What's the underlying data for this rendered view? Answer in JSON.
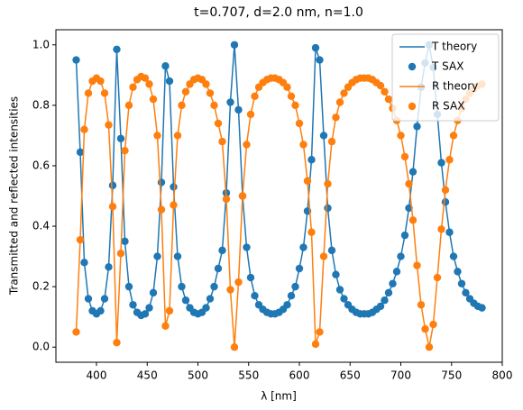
{
  "chart_data": {
    "type": "line",
    "title": "t=0.707, d=2.0 nm, n=1.0",
    "xlabel": "λ [nm]",
    "ylabel": "Transmitted and reflected intensities",
    "x": [
      380,
      384,
      388,
      392,
      396,
      400,
      404,
      408,
      412,
      416,
      420,
      424,
      428,
      432,
      436,
      440,
      444,
      448,
      452,
      456,
      460,
      464,
      468,
      472,
      476,
      480,
      484,
      488,
      492,
      496,
      500,
      504,
      508,
      512,
      516,
      520,
      524,
      528,
      532,
      536,
      540,
      544,
      548,
      552,
      556,
      560,
      564,
      568,
      572,
      576,
      580,
      584,
      588,
      592,
      596,
      600,
      604,
      608,
      612,
      616,
      620,
      624,
      628,
      632,
      636,
      640,
      644,
      648,
      652,
      656,
      660,
      664,
      668,
      672,
      676,
      680,
      684,
      688,
      692,
      696,
      700,
      704,
      708,
      712,
      716,
      720,
      724,
      728,
      732,
      736,
      740,
      744,
      748,
      752,
      756,
      760,
      764,
      768,
      772,
      776,
      780
    ],
    "series": [
      {
        "name": "T theory",
        "color": "#1f77b4",
        "style": "line",
        "values": [
          0.95,
          0.645,
          0.28,
          0.16,
          0.12,
          0.11,
          0.12,
          0.16,
          0.265,
          0.535,
          0.985,
          0.69,
          0.35,
          0.2,
          0.14,
          0.115,
          0.105,
          0.11,
          0.13,
          0.18,
          0.3,
          0.545,
          0.93,
          0.88,
          0.53,
          0.3,
          0.2,
          0.155,
          0.13,
          0.115,
          0.11,
          0.115,
          0.13,
          0.16,
          0.2,
          0.26,
          0.32,
          0.51,
          0.81,
          1.0,
          0.785,
          0.5,
          0.33,
          0.23,
          0.17,
          0.14,
          0.125,
          0.115,
          0.11,
          0.11,
          0.115,
          0.125,
          0.14,
          0.17,
          0.2,
          0.26,
          0.33,
          0.45,
          0.62,
          0.99,
          0.95,
          0.7,
          0.46,
          0.32,
          0.24,
          0.19,
          0.16,
          0.14,
          0.125,
          0.115,
          0.11,
          0.11,
          0.11,
          0.115,
          0.125,
          0.135,
          0.155,
          0.18,
          0.21,
          0.25,
          0.3,
          0.37,
          0.46,
          0.58,
          0.73,
          0.86,
          0.94,
          1.0,
          0.925,
          0.77,
          0.61,
          0.48,
          0.38,
          0.3,
          0.25,
          0.21,
          0.18,
          0.16,
          0.145,
          0.135,
          0.13
        ]
      },
      {
        "name": "T SAX",
        "color": "#1f77b4",
        "style": "marker",
        "values": [
          0.95,
          0.645,
          0.28,
          0.16,
          0.12,
          0.11,
          0.12,
          0.16,
          0.265,
          0.535,
          0.985,
          0.69,
          0.35,
          0.2,
          0.14,
          0.115,
          0.105,
          0.11,
          0.13,
          0.18,
          0.3,
          0.545,
          0.93,
          0.88,
          0.53,
          0.3,
          0.2,
          0.155,
          0.13,
          0.115,
          0.11,
          0.115,
          0.13,
          0.16,
          0.2,
          0.26,
          0.32,
          0.51,
          0.81,
          1.0,
          0.785,
          0.5,
          0.33,
          0.23,
          0.17,
          0.14,
          0.125,
          0.115,
          0.11,
          0.11,
          0.115,
          0.125,
          0.14,
          0.17,
          0.2,
          0.26,
          0.33,
          0.45,
          0.62,
          0.99,
          0.95,
          0.7,
          0.46,
          0.32,
          0.24,
          0.19,
          0.16,
          0.14,
          0.125,
          0.115,
          0.11,
          0.11,
          0.11,
          0.115,
          0.125,
          0.135,
          0.155,
          0.18,
          0.21,
          0.25,
          0.3,
          0.37,
          0.46,
          0.58,
          0.73,
          0.86,
          0.94,
          1.0,
          0.925,
          0.77,
          0.61,
          0.48,
          0.38,
          0.3,
          0.25,
          0.21,
          0.18,
          0.16,
          0.145,
          0.135,
          0.13
        ]
      },
      {
        "name": "R theory",
        "color": "#ff7f0e",
        "style": "line",
        "values": [
          0.05,
          0.355,
          0.72,
          0.84,
          0.88,
          0.89,
          0.88,
          0.84,
          0.735,
          0.465,
          0.015,
          0.31,
          0.65,
          0.8,
          0.86,
          0.885,
          0.895,
          0.89,
          0.87,
          0.82,
          0.7,
          0.455,
          0.07,
          0.12,
          0.47,
          0.7,
          0.8,
          0.845,
          0.87,
          0.885,
          0.89,
          0.885,
          0.87,
          0.84,
          0.8,
          0.74,
          0.68,
          0.49,
          0.19,
          0,
          0.215,
          0.5,
          0.67,
          0.77,
          0.83,
          0.86,
          0.875,
          0.885,
          0.89,
          0.89,
          0.885,
          0.875,
          0.86,
          0.83,
          0.8,
          0.74,
          0.67,
          0.55,
          0.38,
          0.01,
          0.05,
          0.3,
          0.54,
          0.68,
          0.76,
          0.81,
          0.84,
          0.86,
          0.875,
          0.885,
          0.89,
          0.89,
          0.89,
          0.885,
          0.875,
          0.865,
          0.845,
          0.82,
          0.79,
          0.75,
          0.7,
          0.63,
          0.54,
          0.42,
          0.27,
          0.14,
          0.06,
          0,
          0.075,
          0.23,
          0.39,
          0.52,
          0.62,
          0.7,
          0.75,
          0.79,
          0.82,
          0.84,
          0.855,
          0.865,
          0.87
        ]
      },
      {
        "name": "R SAX",
        "color": "#ff7f0e",
        "style": "marker",
        "values": [
          0.05,
          0.355,
          0.72,
          0.84,
          0.88,
          0.89,
          0.88,
          0.84,
          0.735,
          0.465,
          0.015,
          0.31,
          0.65,
          0.8,
          0.86,
          0.885,
          0.895,
          0.89,
          0.87,
          0.82,
          0.7,
          0.455,
          0.07,
          0.12,
          0.47,
          0.7,
          0.8,
          0.845,
          0.87,
          0.885,
          0.89,
          0.885,
          0.87,
          0.84,
          0.8,
          0.74,
          0.68,
          0.49,
          0.19,
          0,
          0.215,
          0.5,
          0.67,
          0.77,
          0.83,
          0.86,
          0.875,
          0.885,
          0.89,
          0.89,
          0.885,
          0.875,
          0.86,
          0.83,
          0.8,
          0.74,
          0.67,
          0.55,
          0.38,
          0.01,
          0.05,
          0.3,
          0.54,
          0.68,
          0.76,
          0.81,
          0.84,
          0.86,
          0.875,
          0.885,
          0.89,
          0.89,
          0.89,
          0.885,
          0.875,
          0.865,
          0.845,
          0.82,
          0.79,
          0.75,
          0.7,
          0.63,
          0.54,
          0.42,
          0.27,
          0.14,
          0.06,
          0,
          0.075,
          0.23,
          0.39,
          0.52,
          0.62,
          0.7,
          0.75,
          0.79,
          0.82,
          0.84,
          0.855,
          0.865,
          0.87
        ]
      }
    ],
    "xlim": [
      360,
      800
    ],
    "xticks": [
      400,
      450,
      500,
      550,
      600,
      650,
      700,
      750,
      800
    ],
    "ylim": [
      -0.05,
      1.05
    ],
    "yticks": [
      {
        "value": 0,
        "label": "0.0"
      },
      {
        "value": 0.2,
        "label": "0.2"
      },
      {
        "value": 0.4,
        "label": "0.4"
      },
      {
        "value": 0.6,
        "label": "0.6"
      },
      {
        "value": 0.8,
        "label": "0.8"
      },
      {
        "value": 1,
        "label": "1.0"
      }
    ],
    "grid": false,
    "legend": "upper right"
  }
}
